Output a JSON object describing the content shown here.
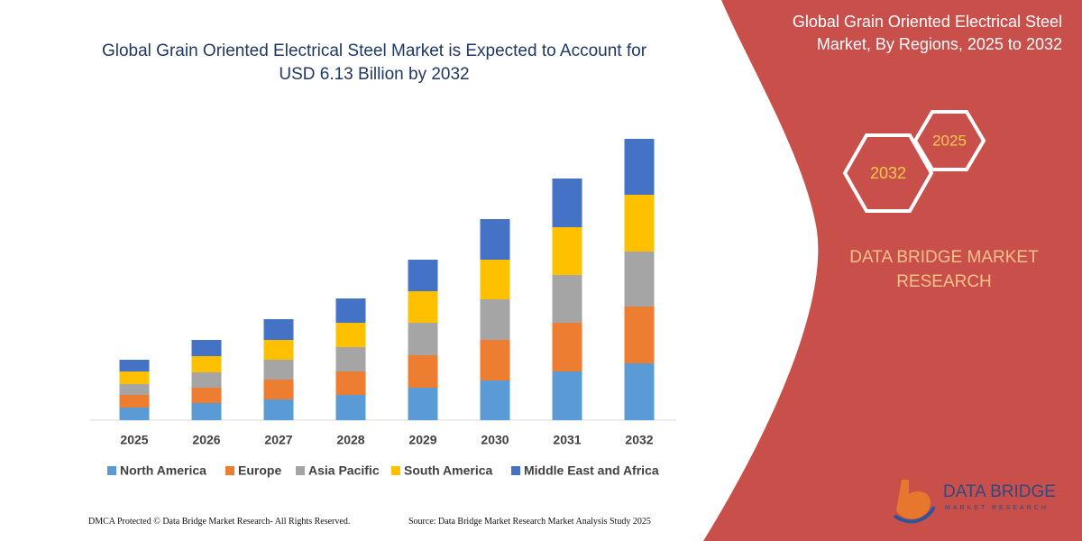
{
  "chart_data": {
    "type": "stacked_bar",
    "title": "Global Grain Oriented Electrical Steel Market is Expected to Account for USD 6.13 Billion by 2032",
    "categories": [
      "2025",
      "2026",
      "2027",
      "2028",
      "2029",
      "2030",
      "2031",
      "2032"
    ],
    "series": [
      {
        "name": "North America",
        "color": "#5b9bd5",
        "values": [
          14,
          19,
          23,
          28,
          36,
          44,
          54,
          63
        ]
      },
      {
        "name": "Europe",
        "color": "#ed7d31",
        "values": [
          14,
          17,
          22,
          26,
          36,
          45,
          54,
          63
        ]
      },
      {
        "name": "Asia Pacific",
        "color": "#a5a5a5",
        "values": [
          12,
          17,
          22,
          27,
          36,
          45,
          53,
          61
        ]
      },
      {
        "name": "South America",
        "color": "#ffc000",
        "values": [
          14,
          18,
          22,
          27,
          35,
          44,
          53,
          63
        ]
      },
      {
        "name": "Middle East and Africa",
        "color": "#4472c4",
        "values": [
          13,
          18,
          23,
          27,
          35,
          45,
          54,
          62
        ]
      }
    ],
    "legend": "bottom"
  },
  "panel": {
    "title": "Global Grain Oriented Electrical Steel Market, By Regions, 2025 to 2032",
    "hex_start": "2025",
    "hex_end": "2032",
    "brand": "DATA BRIDGE MARKET RESEARCH"
  },
  "logo": {
    "name": "DATA BRIDGE",
    "tagline": "MARKET RESEARCH"
  },
  "footer": {
    "left": "DMCA Protected © Data Bridge Market Research-  All Rights Reserved.",
    "right": "Source: Data Bridge Market Research  Market Analysis Study 2025"
  }
}
